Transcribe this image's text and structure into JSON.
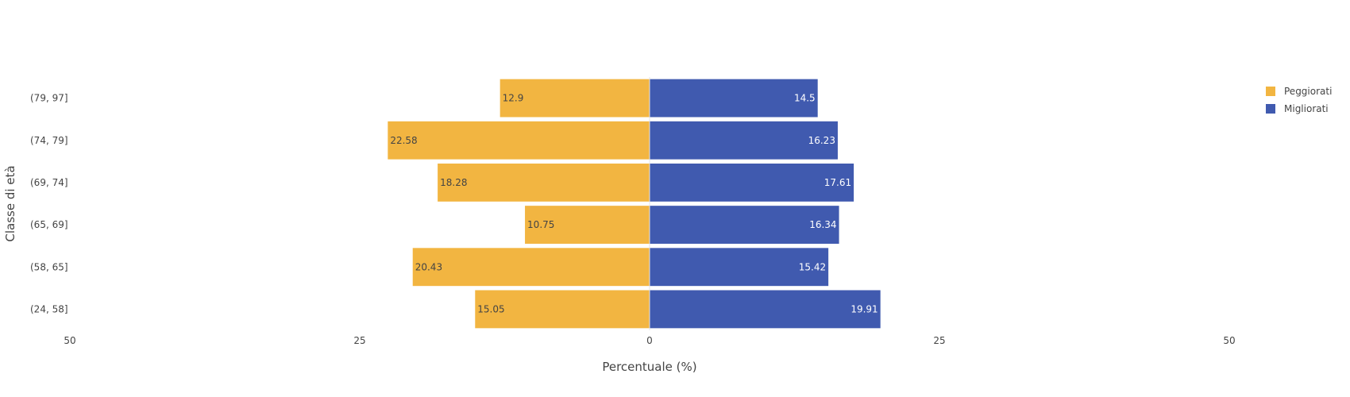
{
  "chart_data": {
    "type": "bar",
    "orientation": "horizontal",
    "barmode": "relative",
    "categories": [
      "(79, 97]",
      "(74, 79]",
      "(69, 74]",
      "(65, 69]",
      "(58, 65]",
      "(24, 58]"
    ],
    "series": [
      {
        "name": "Peggiorati",
        "values": [
          12.9,
          22.58,
          18.28,
          10.75,
          20.43,
          15.05
        ],
        "color": "#F2B541",
        "direction": "left"
      },
      {
        "name": "Migliorati",
        "values": [
          14.5,
          16.23,
          17.61,
          16.34,
          15.42,
          19.91
        ],
        "color": "#405AAF",
        "direction": "right"
      }
    ],
    "xlabel": "Percentuale (%)",
    "ylabel": "Classe di età",
    "xlim": [
      -50,
      50
    ],
    "xticks": [
      {
        "value": -50,
        "label": "50"
      },
      {
        "value": -25,
        "label": "25"
      },
      {
        "value": 0,
        "label": "0"
      },
      {
        "value": 25,
        "label": "25"
      },
      {
        "value": 50,
        "label": "50"
      }
    ],
    "grid": false,
    "legend_position": "top-right"
  }
}
